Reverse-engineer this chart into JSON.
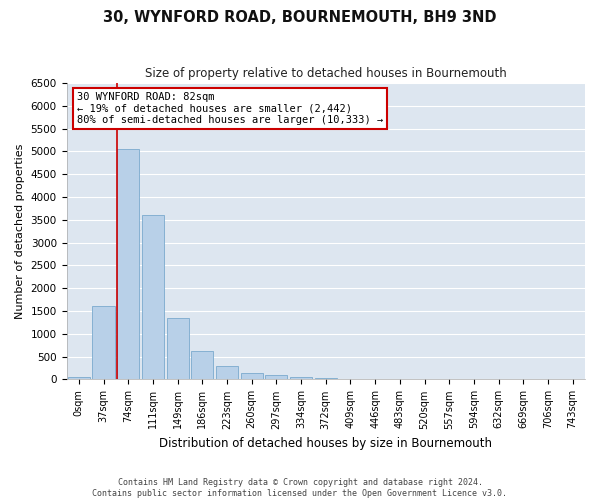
{
  "title": "30, WYNFORD ROAD, BOURNEMOUTH, BH9 3ND",
  "subtitle": "Size of property relative to detached houses in Bournemouth",
  "xlabel": "Distribution of detached houses by size in Bournemouth",
  "ylabel": "Number of detached properties",
  "footer_line1": "Contains HM Land Registry data © Crown copyright and database right 2024.",
  "footer_line2": "Contains public sector information licensed under the Open Government Licence v3.0.",
  "bar_labels": [
    "0sqm",
    "37sqm",
    "74sqm",
    "111sqm",
    "149sqm",
    "186sqm",
    "223sqm",
    "260sqm",
    "297sqm",
    "334sqm",
    "372sqm",
    "409sqm",
    "446sqm",
    "483sqm",
    "520sqm",
    "557sqm",
    "594sqm",
    "632sqm",
    "669sqm",
    "706sqm",
    "743sqm"
  ],
  "bar_values": [
    50,
    1600,
    5050,
    3600,
    1350,
    620,
    290,
    150,
    100,
    60,
    40,
    20,
    10,
    5,
    3,
    2,
    1,
    1,
    1,
    0,
    0
  ],
  "bar_color": "#b8d0e8",
  "bar_edge_color": "#7aaace",
  "background_color": "#dde6f0",
  "grid_color": "#ffffff",
  "vline_color": "#cc0000",
  "vline_x_index": 2,
  "annotation_text": "30 WYNFORD ROAD: 82sqm\n← 19% of detached houses are smaller (2,442)\n80% of semi-detached houses are larger (10,333) →",
  "annotation_box_facecolor": "#ffffff",
  "annotation_box_edgecolor": "#cc0000",
  "ylim_max": 6500,
  "ytick_step": 500,
  "fig_facecolor": "#ffffff"
}
